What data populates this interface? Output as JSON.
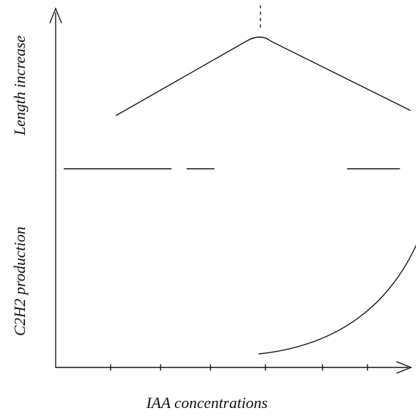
{
  "axes": {
    "y_upper_label": "Length increase",
    "y_lower_label": "C2H2 production",
    "x_label": "IAA concentrations"
  }
}
